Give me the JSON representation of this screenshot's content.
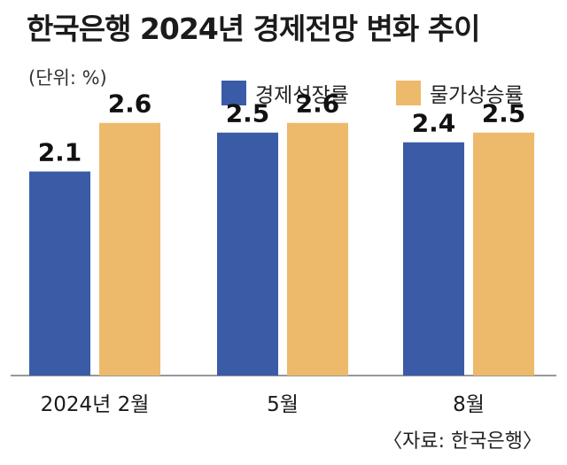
{
  "title": "한국은행 2024년 경제전망 변화 추이",
  "unit": "(단위: %)",
  "source": "〈자료: 한국은행〉",
  "legend": [
    {
      "label": "경제성장률",
      "color": "#3a5ba6"
    },
    {
      "label": "물가상승률",
      "color": "#edb96a"
    }
  ],
  "chart_data": {
    "type": "bar",
    "categories": [
      "2024년 2월",
      "5월",
      "8월"
    ],
    "series": [
      {
        "name": "경제성장률",
        "values": [
          2.1,
          2.5,
          2.4
        ],
        "color": "#3a5ba6"
      },
      {
        "name": "물가상승률",
        "values": [
          2.6,
          2.6,
          2.5
        ],
        "color": "#edb96a"
      }
    ],
    "ylim": [
      0,
      3.5
    ],
    "grid": false,
    "legend_position": "top-right",
    "value_labels": true
  }
}
